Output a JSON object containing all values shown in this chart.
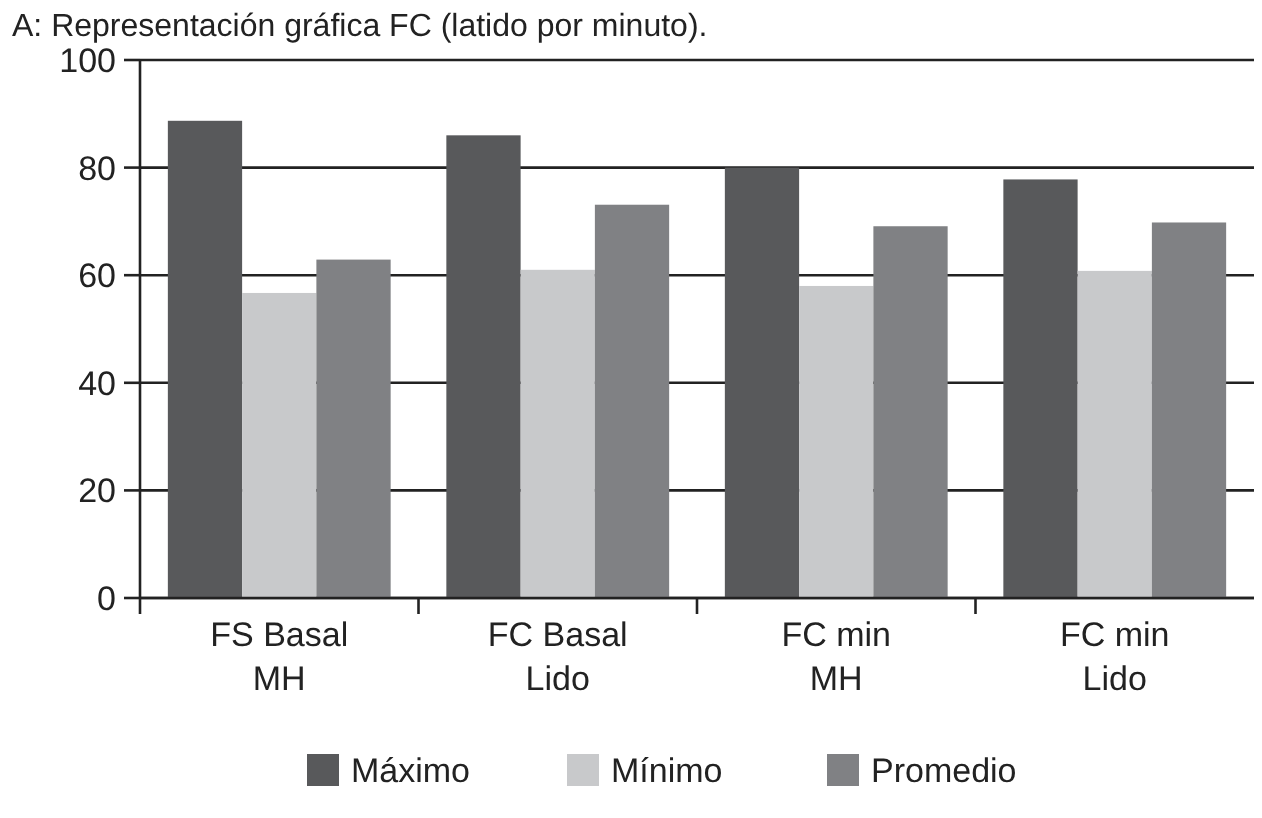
{
  "chart_data": {
    "type": "bar",
    "title": "A: Representación gráfica FC (latido por minuto).",
    "categories": [
      "FS Basal\nMH",
      "FC Basal\nLido",
      "FC min\nMH",
      "FC min\nLido"
    ],
    "series": [
      {
        "name": "Máximo",
        "color": "#58595b",
        "values": [
          88.7,
          86,
          80,
          77.8
        ]
      },
      {
        "name": "Mínimo",
        "color": "#c8c9cb",
        "values": [
          56.7,
          61,
          58,
          60.8
        ]
      },
      {
        "name": "Promedio",
        "color": "#808184",
        "values": [
          62.9,
          73.1,
          69.1,
          69.8
        ]
      }
    ],
    "ylim": [
      0,
      100
    ],
    "yticks": [
      0,
      20,
      40,
      60,
      80,
      100
    ],
    "grid": "y",
    "legend": "bottom"
  }
}
